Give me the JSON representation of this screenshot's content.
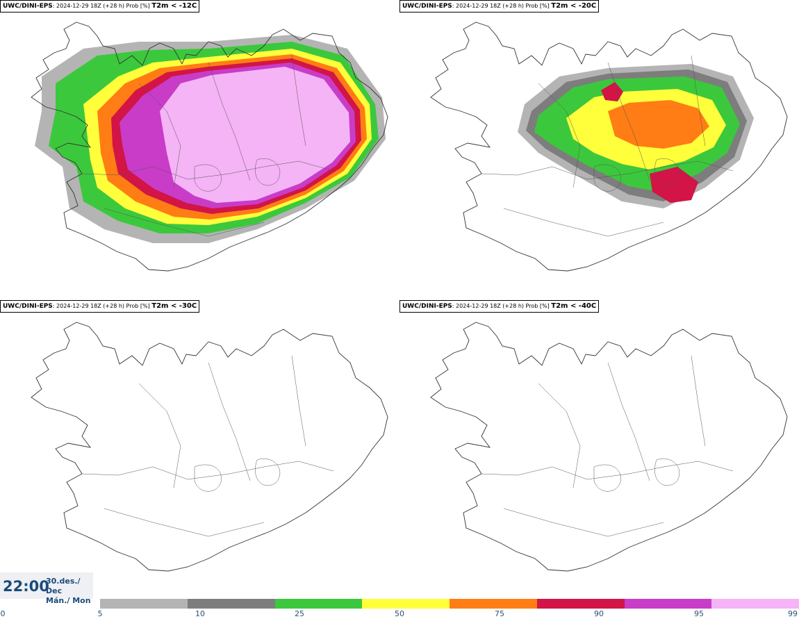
{
  "panels": [
    {
      "model": "UWC/DINI-EPS",
      "meta": ": 2024-12-29 18Z (+28 h) Prob [%] ",
      "threshold": "T2m < -12C"
    },
    {
      "model": "UWC/DINI-EPS",
      "meta": ": 2024-12-29 18Z (+28 h) Prob [%] ",
      "threshold": "T2m < -20C"
    },
    {
      "model": "UWC/DINI-EPS",
      "meta": ": 2024-12-29 18Z (+28 h) Prob [%] ",
      "threshold": "T2m < -30C"
    },
    {
      "model": "UWC/DINI-EPS",
      "meta": ": 2024-12-29 18Z (+28 h) Prob [%] ",
      "threshold": "T2m < -40C"
    }
  ],
  "valid_time": {
    "time": "22:00",
    "date_line1": "30.des./ Dec",
    "date_line2": "Mán./ Mon"
  },
  "legend": {
    "ticks": [
      "0",
      "5",
      "10",
      "25",
      "50",
      "75",
      "90",
      "95",
      "99"
    ],
    "colors": [
      "#b4b4b4",
      "#7d7d7d",
      "#3cc83c",
      "#ffff3c",
      "#ff7d14",
      "#d21446",
      "#c83cc8",
      "#f5b4f5"
    ]
  }
}
